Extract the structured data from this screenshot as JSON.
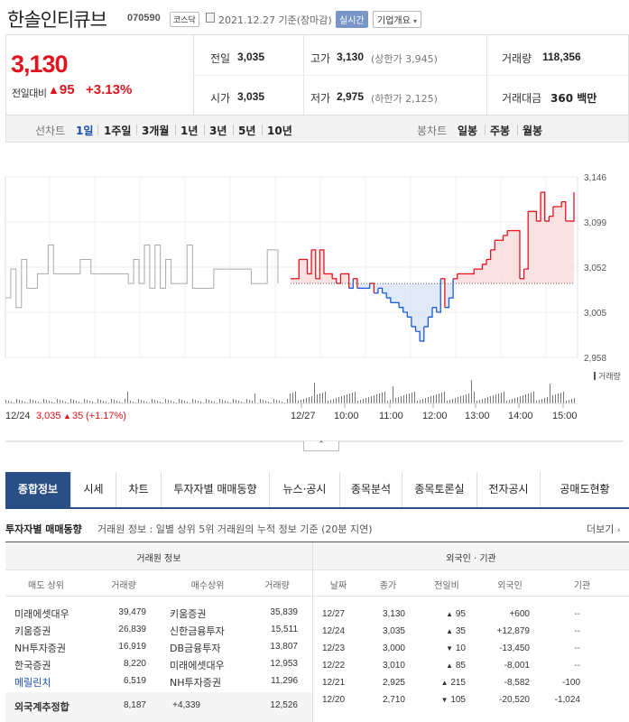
{
  "header": {
    "name": "한솔인티큐브",
    "code": "070590",
    "market": "코스닥",
    "date": "2021.12.27  기준(장마감)",
    "realtime": "실시간",
    "corp_info": "기업개요"
  },
  "price": {
    "current": "3,130",
    "change_label": "전일대비",
    "change_arrow": "▲",
    "change": "95",
    "change_pct": "+3.13%"
  },
  "stats": {
    "prev_label": "전일",
    "prev": "3,035",
    "open_label": "시가",
    "open": "3,035",
    "high_label": "고가",
    "high": "3,130",
    "high_limit": "(상한가 3,945)",
    "low_label": "저가",
    "low": "2,975",
    "low_limit": "(하한가 2,125)",
    "volume_label": "거래량",
    "volume": "118,356",
    "amount_label": "거래대금",
    "amount": "360 백만"
  },
  "period": {
    "line_label": "선차트",
    "line_items": [
      "1일",
      "1주일",
      "3개월",
      "1년",
      "3년",
      "5년",
      "10년"
    ],
    "candle_label": "봉차트",
    "candle_items": [
      "일봉",
      "주봉",
      "월봉"
    ]
  },
  "chart_data": {
    "type": "line",
    "y_ticks": [
      "3,146",
      "3,099",
      "3,052",
      "3,005",
      "2,958"
    ],
    "ylim": [
      2958,
      3146
    ],
    "x_ticks": [
      "12/24",
      "12/27",
      "10:00",
      "11:00",
      "12:00",
      "13:00",
      "14:00",
      "15:00"
    ],
    "prev_close": 3035,
    "volume_label": "거래량",
    "prev_day_summary": {
      "date": "12/24",
      "price": "3,035",
      "arrow": "▲",
      "change": "35",
      "pct": "(+1.17%)"
    },
    "series": [
      {
        "values": [
          3020,
          3050,
          3010,
          3060,
          3030,
          3030,
          3045,
          3045,
          3075,
          3045,
          3045,
          3045,
          3045,
          3045,
          3060,
          3060,
          3045,
          3045,
          3045,
          3045,
          3045,
          3045,
          3045,
          3035,
          3060,
          3035,
          3075,
          3030,
          3075,
          3030,
          3060,
          3035,
          3035,
          3035,
          3075,
          3030,
          3030,
          3030,
          3030,
          3050,
          3050,
          3050,
          3050,
          3050,
          3050,
          3050,
          3035,
          3035,
          3035,
          3070,
          3070,
          3035
        ]
      },
      {
        "values": [
          3040,
          3040,
          3060,
          3060,
          3045,
          3070,
          3040,
          3070,
          3045,
          3045,
          3040,
          3035,
          3045,
          3045,
          3030,
          3040,
          3030,
          3030,
          3030,
          3035,
          3025,
          3030,
          3025,
          3020,
          3015,
          3015,
          3010,
          3005,
          3000,
          2990,
          2985,
          2975,
          2990,
          3000,
          3010,
          3005,
          3040,
          3010,
          3020,
          3040,
          3045,
          3045,
          3045,
          3045,
          3050,
          3050,
          3055,
          3060,
          3070,
          3080,
          3080,
          3085,
          3090,
          3090,
          3090,
          3040,
          3050,
          3110,
          3110,
          3100,
          3130,
          3100,
          3105,
          3115,
          3115,
          3120,
          3100,
          3100,
          3130
        ]
      }
    ]
  },
  "collapse_icon": "chevron-up-icon",
  "tabs": [
    "종합정보",
    "시세",
    "차트",
    "투자자별 매매동향",
    "뉴스·공시",
    "종목분석",
    "종목토론실",
    "전자공시",
    "공매도현황"
  ],
  "investor": {
    "title": "투자자별 매매동향",
    "desc": "거래원 정보 : 일별 상위 5위 거래원의 누적 정보 기준 (20분 지연)",
    "more": "더보기",
    "broker_header": "거래원 정보",
    "foreign_header": "외국인 · 기관",
    "broker_cols": [
      "매도 상위",
      "거래량",
      "매수상위",
      "거래량"
    ],
    "foreign_cols": [
      "날짜",
      "종가",
      "전일비",
      "외국인",
      "기관"
    ],
    "broker_rows": [
      {
        "sell": "미래에셋대우",
        "sell_vol": "39,479",
        "buy": "키움증권",
        "buy_vol": "35,839"
      },
      {
        "sell": "키움증권",
        "sell_vol": "26,839",
        "buy": "신한금융투자",
        "buy_vol": "15,511"
      },
      {
        "sell": "NH투자증권",
        "sell_vol": "16,919",
        "buy": "DB금융투자",
        "buy_vol": "13,807"
      },
      {
        "sell": "한국증권",
        "sell_vol": "8,220",
        "buy": "미래에셋대우",
        "buy_vol": "12,953"
      },
      {
        "sell": "메릴린치",
        "sell_vol": "6,519",
        "buy": "NH투자증권",
        "buy_vol": "11,296"
      }
    ],
    "foreign_total": {
      "label": "외국계추정합",
      "sell_vol": "8,187",
      "net": "+4,339",
      "buy_vol": "12,526"
    },
    "foreign_rows": [
      {
        "date": "12/27",
        "close": "3,130",
        "arrow": "▲",
        "change": "95",
        "foreign": "+600",
        "inst": "--",
        "up": true
      },
      {
        "date": "12/24",
        "close": "3,035",
        "arrow": "▲",
        "change": "35",
        "foreign": "+12,879",
        "inst": "--",
        "up": true
      },
      {
        "date": "12/23",
        "close": "3,000",
        "arrow": "▼",
        "change": "10",
        "foreign": "-13,450",
        "inst": "--",
        "up": false
      },
      {
        "date": "12/22",
        "close": "3,010",
        "arrow": "▲",
        "change": "85",
        "foreign": "-8,001",
        "inst": "--",
        "up": true
      },
      {
        "date": "12/21",
        "close": "2,925",
        "arrow": "▲",
        "change": "215",
        "foreign": "-8,582",
        "inst": "-100",
        "up": true
      },
      {
        "date": "12/20",
        "close": "2,710",
        "arrow": "▼",
        "change": "105",
        "foreign": "-20,520",
        "inst": "-1,024",
        "up": false
      }
    ]
  }
}
